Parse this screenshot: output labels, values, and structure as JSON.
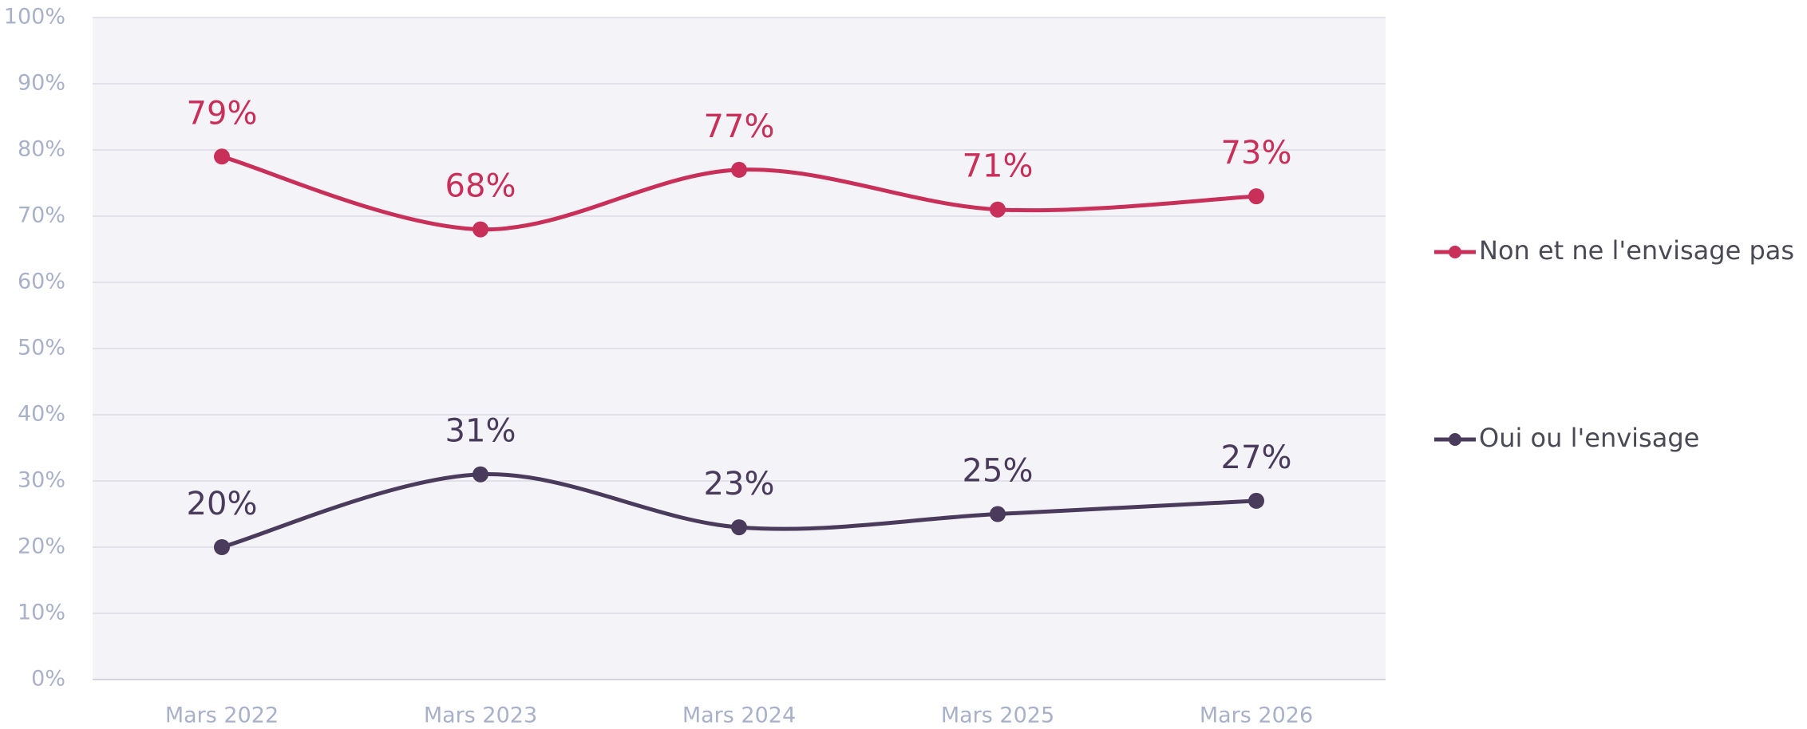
{
  "chart_data": {
    "type": "line",
    "categories": [
      "Mars 2022",
      "Mars 2023",
      "Mars 2024",
      "Mars 2025",
      "Mars 2026"
    ],
    "series": [
      {
        "name": "Non et ne l'envisage pas",
        "color": "#c8305a",
        "values": [
          79,
          68,
          77,
          71,
          73
        ],
        "value_labels": [
          "79%",
          "68%",
          "77%",
          "71%",
          "73%"
        ]
      },
      {
        "name": "Oui ou l'envisage",
        "color": "#4a3b5c",
        "values": [
          20,
          31,
          23,
          25,
          27
        ],
        "value_labels": [
          "20%",
          "31%",
          "23%",
          "25%",
          "27%"
        ]
      }
    ],
    "ylim": [
      0,
      100
    ],
    "yticks": [
      {
        "value": 0,
        "label": "0%"
      },
      {
        "value": 10,
        "label": "10%"
      },
      {
        "value": 20,
        "label": "20%"
      },
      {
        "value": 30,
        "label": "30%"
      },
      {
        "value": 40,
        "label": "40%"
      },
      {
        "value": 50,
        "label": "50%"
      },
      {
        "value": 60,
        "label": "60%"
      },
      {
        "value": 70,
        "label": "70%"
      },
      {
        "value": 80,
        "label": "80%"
      },
      {
        "value": 90,
        "label": "90%"
      },
      {
        "value": 100,
        "label": "100%"
      }
    ],
    "grid": true,
    "smooth": true,
    "legend": "right"
  }
}
